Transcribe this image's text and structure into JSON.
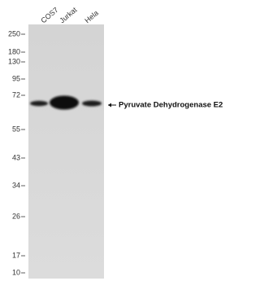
{
  "lanes": [
    "COS7",
    "Jurkat",
    "Hela"
  ],
  "markers": [
    250,
    180,
    130,
    95,
    72,
    55,
    43,
    34,
    26,
    17,
    10
  ],
  "band_label": "Pyruvate Dehydrogenase E2"
}
